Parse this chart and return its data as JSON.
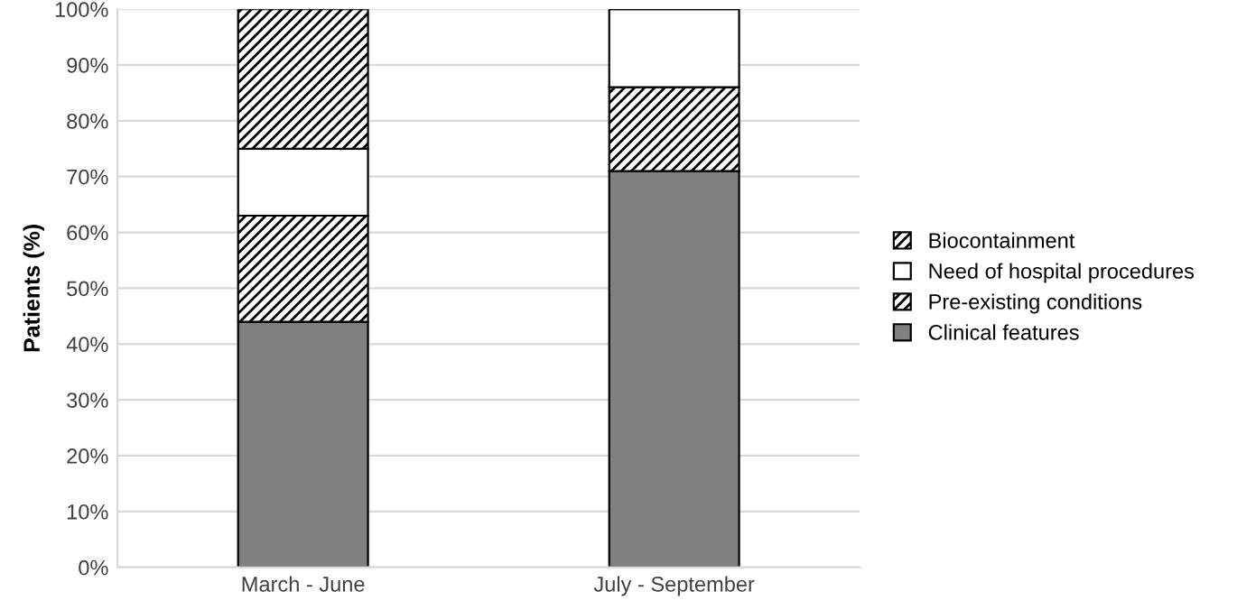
{
  "chart_data": {
    "type": "bar",
    "stacked": true,
    "ylabel": "Patients (%)",
    "categories": [
      "March - June",
      "July - September"
    ],
    "series": [
      {
        "name": "Clinical features",
        "color": "#808080",
        "values": [
          44,
          71
        ]
      },
      {
        "name": "Pre-existing conditions",
        "color": "#000000",
        "values": [
          19,
          15
        ]
      },
      {
        "name": "Need of hospital procedures",
        "color": "#ffffff",
        "values": [
          12,
          14
        ]
      },
      {
        "name": "Biocontainment",
        "color": "#000000",
        "values": [
          25,
          0
        ]
      }
    ],
    "ylim": [
      0,
      100
    ],
    "yticks": [
      {
        "value": 0,
        "label": "0%"
      },
      {
        "value": 10,
        "label": "10%"
      },
      {
        "value": 20,
        "label": "20%"
      },
      {
        "value": 30,
        "label": "30%"
      },
      {
        "value": 40,
        "label": "40%"
      },
      {
        "value": 50,
        "label": "50%"
      },
      {
        "value": 60,
        "label": "60%"
      },
      {
        "value": 70,
        "label": "70%"
      },
      {
        "value": 80,
        "label": "80%"
      },
      {
        "value": 90,
        "label": "90%"
      },
      {
        "value": 100,
        "label": "100%"
      }
    ],
    "grid": "y",
    "legend": "right"
  }
}
